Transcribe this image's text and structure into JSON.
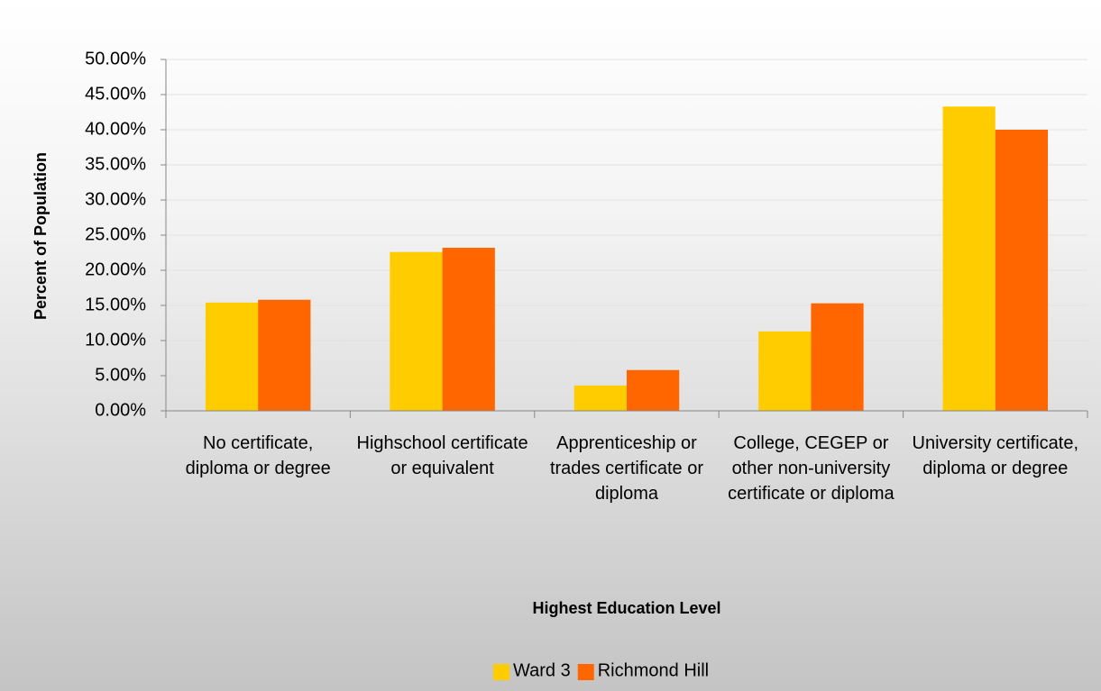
{
  "chart_data": {
    "type": "bar",
    "x_label": "Highest Education Level",
    "y_label": "Percent of Population",
    "categories": [
      "No certificate, diploma or degree",
      "Highschool certificate or equivalent",
      "Apprenticeship or trades certificate or diploma",
      "College, CEGEP or other non-university certificate or diploma",
      "University certificate, diploma or degree"
    ],
    "series": [
      {
        "name": "Ward 3",
        "color": "#ffcc00",
        "values": [
          15.4,
          22.6,
          3.6,
          11.3,
          43.3
        ]
      },
      {
        "name": "Richmond Hill",
        "color": "#ff6600",
        "values": [
          15.8,
          23.2,
          5.8,
          15.3,
          40.0
        ]
      }
    ],
    "ylim": [
      0,
      50
    ],
    "yticks": [
      {
        "value": 0,
        "label": "0.00%"
      },
      {
        "value": 5,
        "label": "5.00%"
      },
      {
        "value": 10,
        "label": "10.00%"
      },
      {
        "value": 15,
        "label": "15.00%"
      },
      {
        "value": 20,
        "label": "20.00%"
      },
      {
        "value": 25,
        "label": "25.00%"
      },
      {
        "value": 30,
        "label": "30.00%"
      },
      {
        "value": 35,
        "label": "35.00%"
      },
      {
        "value": 40,
        "label": "40.00%"
      },
      {
        "value": 45,
        "label": "45.00%"
      },
      {
        "value": 50,
        "label": "50.00%"
      }
    ],
    "grid": true,
    "legend": "bottom"
  }
}
